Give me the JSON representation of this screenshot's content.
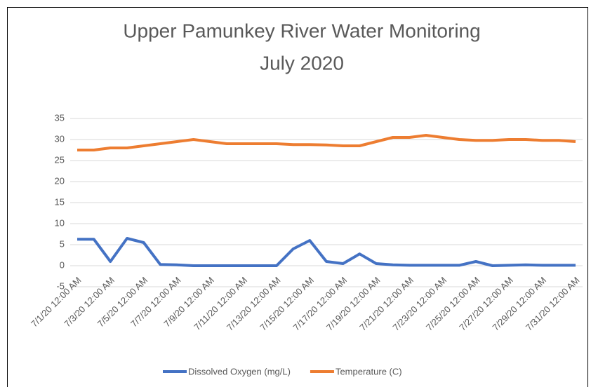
{
  "chart_data": {
    "type": "line",
    "title": "Upper Pamunkey River Water Monitoring",
    "subtitle": "July 2020",
    "categories": [
      "7/1/20 12:00 AM",
      null,
      "7/3/20 12:00 AM",
      null,
      "7/5/20 12:00 AM",
      null,
      "7/7/20 12:00 AM",
      null,
      "7/9/20 12:00 AM",
      null,
      "7/11/20 12:00 AM",
      null,
      "7/13/20 12:00 AM",
      null,
      "7/15/20 12:00 AM",
      null,
      "7/17/20 12:00 AM",
      null,
      "7/19/20 12:00 AM",
      null,
      "7/21/20 12:00 AM",
      null,
      "7/23/20 12:00 AM",
      null,
      "7/25/20 12:00 AM",
      null,
      "7/27/20 12:00 AM",
      null,
      "7/29/20 12:00 AM",
      null,
      "7/31/20 12:00 AM"
    ],
    "series": [
      {
        "name": "Dissolved Oxygen (mg/L)",
        "color": "#4472c4",
        "values": [
          6.3,
          6.3,
          1,
          6.5,
          5.5,
          0.3,
          0.2,
          0,
          0,
          0,
          0,
          0,
          0,
          4,
          6,
          1,
          0.5,
          2.8,
          0.5,
          0.2,
          0.1,
          0.1,
          0.1,
          0.1,
          1,
          0,
          0.1,
          0.2,
          0.1,
          0.1,
          0.1
        ]
      },
      {
        "name": "Temperature (C)",
        "color": "#ed7d31",
        "values": [
          27.5,
          27.5,
          28,
          28,
          28.5,
          29,
          29.5,
          30,
          29.5,
          29,
          29,
          29,
          29,
          28.8,
          28.8,
          28.7,
          28.5,
          28.5,
          29.5,
          30.5,
          30.5,
          31,
          30.5,
          30,
          29.8,
          29.8,
          30,
          30,
          29.8,
          29.8,
          29.5
        ]
      }
    ],
    "ylim": [
      -5,
      35
    ],
    "yticks": [
      -5,
      0,
      5,
      10,
      15,
      20,
      25,
      30,
      35
    ],
    "grid": true,
    "legend": "bottom"
  }
}
